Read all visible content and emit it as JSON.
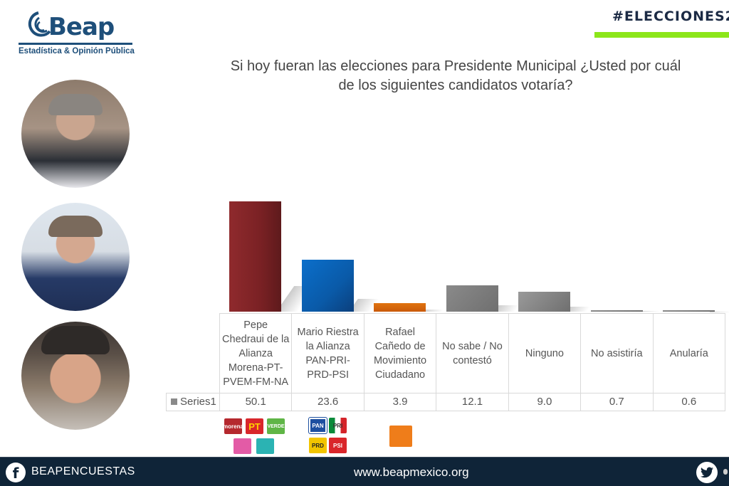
{
  "brand": {
    "name": "Beap",
    "tagline": "Estadística & Opinión Pública",
    "hashtag": "#ELECCIONES2",
    "colors": {
      "navy": "#1e4f7a",
      "footer": "#0f2438",
      "accent_green": "#8ce61a"
    }
  },
  "question": {
    "line1": "Si hoy fueran las elecciones para Presidente Municipal ¿Usted por cuál",
    "line2": "de los siguientes candidatos votaría?"
  },
  "candidates_photos": [
    {
      "name": "candidate-1-photo"
    },
    {
      "name": "candidate-2-photo"
    },
    {
      "name": "candidate-3-photo"
    }
  ],
  "table": {
    "series_label": "Series1",
    "categories": [
      "Pepe Chedraui de la Alianza Morena-PT-PVEM-FM-NA",
      "Mario Riestra la Alianza PAN-PRI-PRD-PSI",
      "Rafael Cañedo de Movimiento Ciudadano",
      "No sabe / No contestó",
      "Ninguno",
      "No asistiría",
      "Anularía"
    ],
    "values": [
      "50.1",
      "23.6",
      "3.9",
      "12.1",
      "9.0",
      "0.7",
      "0.6"
    ]
  },
  "chart_data": {
    "type": "bar",
    "title": "Si hoy fueran las elecciones para Presidente Municipal ¿Usted por cuál de los siguientes candidatos votaría?",
    "categories": [
      "Pepe Chedraui de la Alianza Morena-PT-PVEM-FM-NA",
      "Mario Riestra la Alianza PAN-PRI-PRD-PSI",
      "Rafael Cañedo de Movimiento Ciudadano",
      "No sabe / No contestó",
      "Ninguno",
      "No asistiría",
      "Anularía"
    ],
    "series": [
      {
        "name": "Series1",
        "values": [
          50.1,
          23.6,
          3.9,
          12.1,
          9.0,
          0.7,
          0.6
        ]
      }
    ],
    "bar_colors": [
      "#8b2428",
      "#0a63b8",
      "#d9650f",
      "#8a8a8a",
      "#9a9a9a",
      "#8a8a8a",
      "#8a8a8a"
    ],
    "xlabel": "",
    "ylabel": "",
    "ylim": [
      0,
      55
    ],
    "grid": false,
    "legend_position": "data-table",
    "data_table": true
  },
  "party_logos": {
    "pepe": [
      "morena",
      "PT",
      "VERDE",
      "Fuerza por México",
      "Nueva Alianza"
    ],
    "mario": [
      "PAN",
      "PRI",
      "PRD",
      "PSI"
    ],
    "rafael": [
      "Movimiento Ciudadano"
    ]
  },
  "footer": {
    "facebook_handle": "BEAPENCUESTAS",
    "website": "www.beapmexico.org",
    "facebook_icon": "f"
  }
}
